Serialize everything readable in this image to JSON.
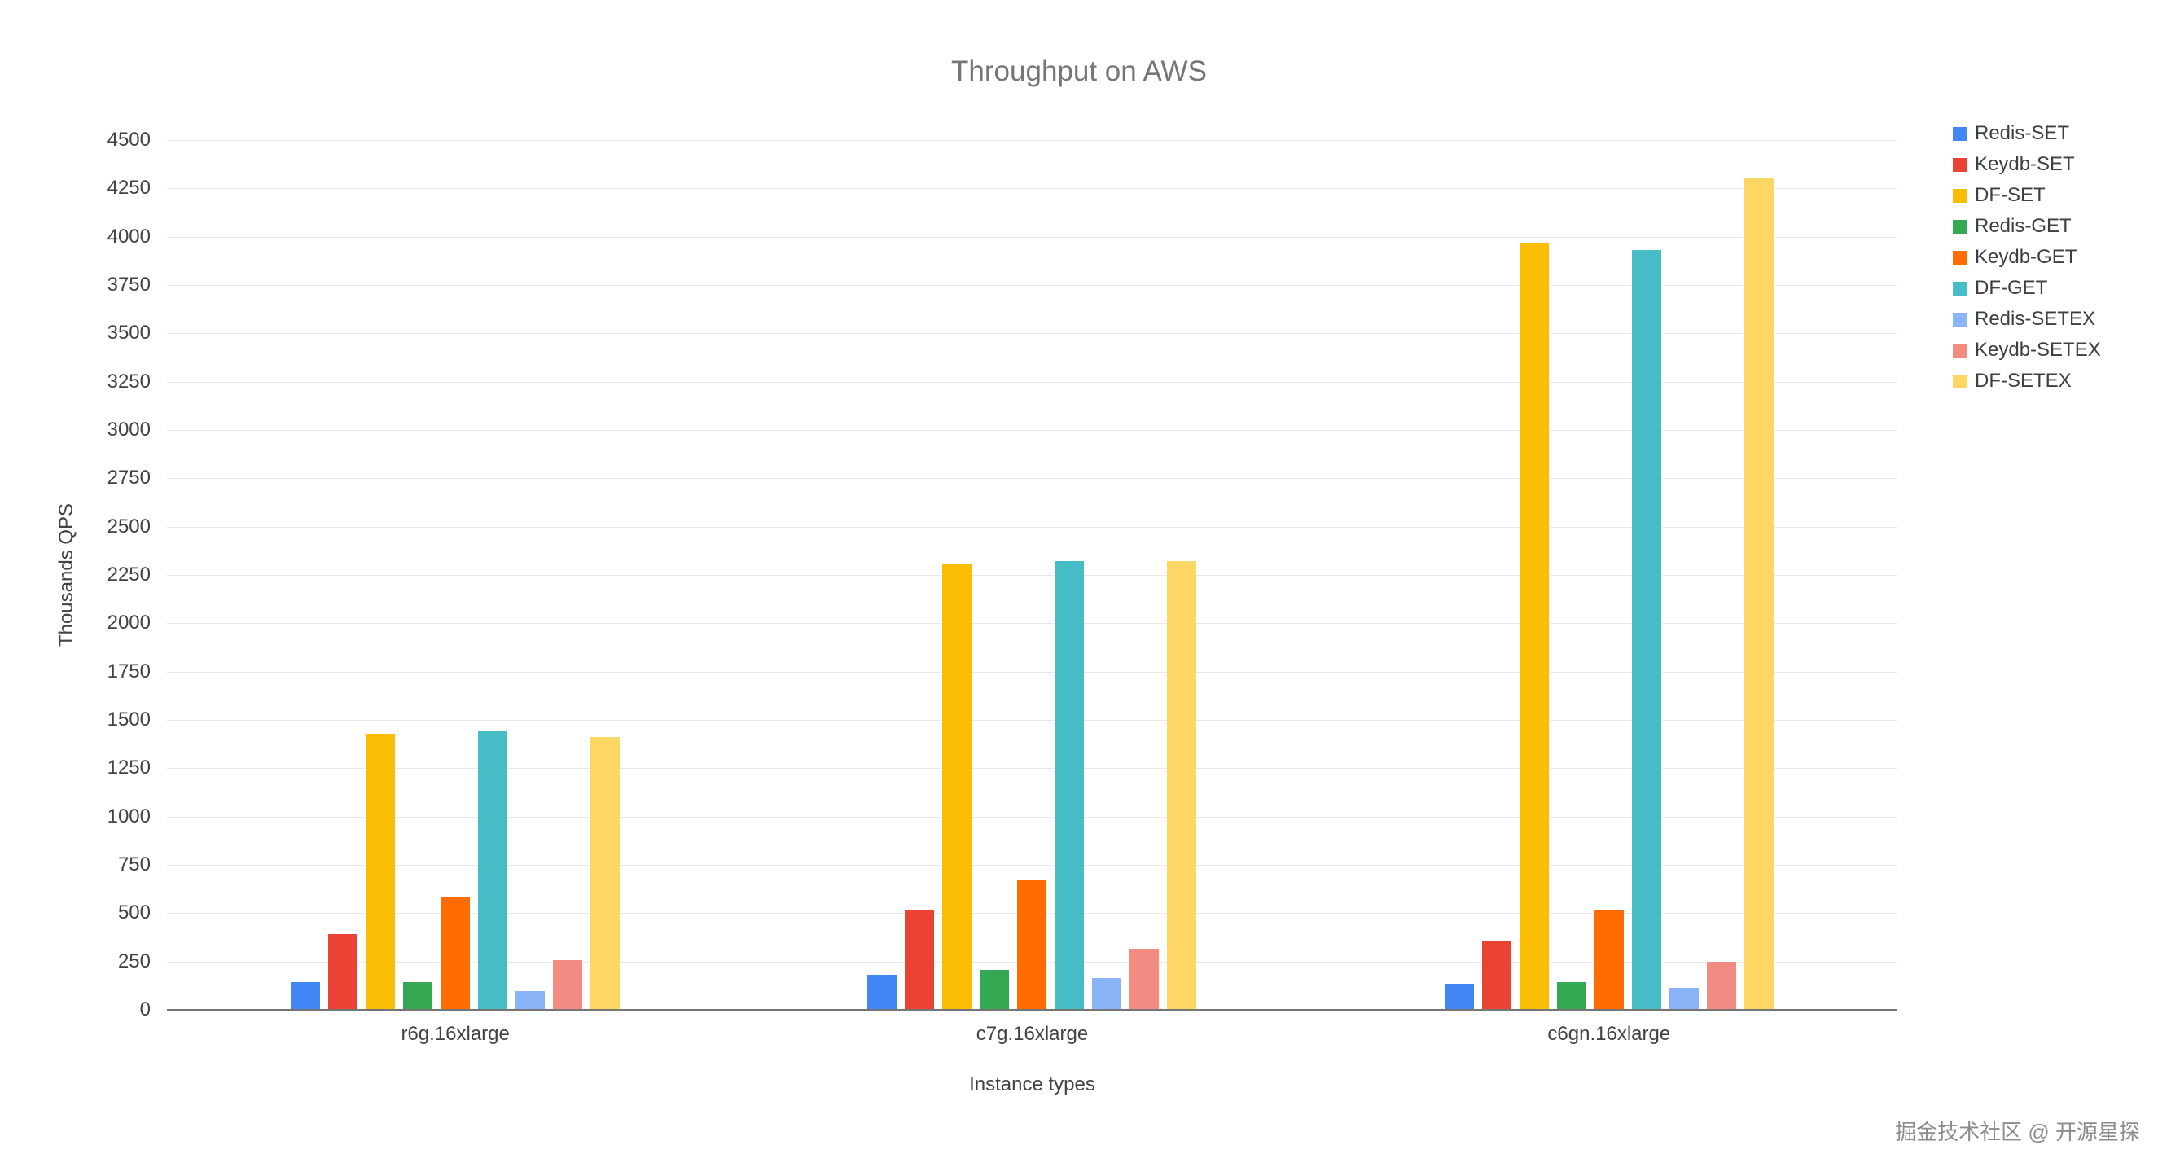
{
  "watermark": {
    "text": "掘金技术社区 @ 开源星探"
  },
  "chart_data": {
    "type": "bar",
    "title": "Throughput on AWS",
    "xlabel": "Instance types",
    "ylabel": "Thousands QPS",
    "ylim": [
      0,
      4500
    ],
    "ytick_step": 250,
    "grid": true,
    "legend_position": "right",
    "categories": [
      "r6g.16xlarge",
      "c7g.16xlarge",
      "c6gn.16xlarge"
    ],
    "series": [
      {
        "name": "Redis-SET",
        "color": "#4285F4",
        "values": [
          145,
          180,
          135
        ]
      },
      {
        "name": "Keydb-SET",
        "color": "#EA4335",
        "values": [
          390,
          520,
          355
        ]
      },
      {
        "name": "DF-SET",
        "color": "#FBBC04",
        "values": [
          1430,
          2310,
          3970
        ]
      },
      {
        "name": "Redis-GET",
        "color": "#34A853",
        "values": [
          145,
          205,
          145
        ]
      },
      {
        "name": "Keydb-GET",
        "color": "#FF6D01",
        "values": [
          585,
          675,
          520
        ]
      },
      {
        "name": "DF-GET",
        "color": "#46BDC6",
        "values": [
          1445,
          2320,
          3930
        ]
      },
      {
        "name": "Redis-SETEX",
        "color": "#8AB4F8",
        "values": [
          95,
          165,
          115
        ]
      },
      {
        "name": "Keydb-SETEX",
        "color": "#F28B82",
        "values": [
          255,
          315,
          250
        ]
      },
      {
        "name": "DF-SETEX",
        "color": "#FDD663",
        "values": [
          1410,
          2320,
          4300
        ]
      }
    ]
  }
}
